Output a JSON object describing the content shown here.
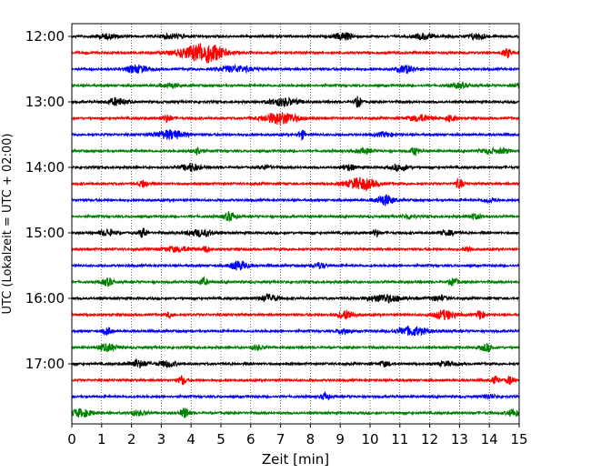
{
  "chart_data": {
    "type": "line",
    "title": "",
    "xlabel": "Zeit  [min]",
    "ylabel": "UTC (Lokalzeit = UTC + 02:00)",
    "xlim": [
      0,
      15
    ],
    "x_ticks": [
      "0",
      "1",
      "2",
      "3",
      "4",
      "5",
      "6",
      "7",
      "8",
      "9",
      "10",
      "11",
      "12",
      "13",
      "14",
      "15"
    ],
    "y_tick_labels": [
      "12:00",
      "13:00",
      "14:00",
      "15:00",
      "16:00",
      "17:00"
    ],
    "grid": "vertical dotted",
    "row_interval_min": 15,
    "colors": [
      "#000000",
      "#ff0000",
      "#0000ff",
      "#008000"
    ],
    "rows": [
      {
        "start": "12:00",
        "color": "#000000",
        "events": [
          [
            1.2,
            0.3,
            0.4
          ],
          [
            3.4,
            0.3,
            0.4
          ],
          [
            9.1,
            0.5,
            0.3
          ],
          [
            11.8,
            0.4,
            0.3
          ],
          [
            13.6,
            0.4,
            0.3
          ]
        ]
      },
      {
        "start": "12:15",
        "color": "#ff0000",
        "events": [
          [
            4.3,
            0.9,
            0.8
          ],
          [
            4.6,
            0.5,
            0.5
          ],
          [
            14.6,
            0.6,
            0.15
          ]
        ]
      },
      {
        "start": "12:30",
        "color": "#0000ff",
        "events": [
          [
            2.2,
            0.5,
            0.4
          ],
          [
            5.5,
            0.4,
            0.6
          ],
          [
            11.2,
            0.5,
            0.3
          ]
        ]
      },
      {
        "start": "12:45",
        "color": "#008000",
        "events": [
          [
            3.3,
            0.3,
            0.3
          ],
          [
            13.0,
            0.3,
            0.3
          ],
          [
            14.9,
            0.3,
            0.2
          ]
        ]
      },
      {
        "start": "13:00",
        "color": "#000000",
        "events": [
          [
            1.5,
            0.5,
            0.3
          ],
          [
            7.1,
            0.5,
            0.5
          ],
          [
            9.6,
            0.7,
            0.12
          ]
        ]
      },
      {
        "start": "13:15",
        "color": "#ff0000",
        "events": [
          [
            3.2,
            0.5,
            0.15
          ],
          [
            7.0,
            0.8,
            0.6
          ],
          [
            11.7,
            0.4,
            0.4
          ],
          [
            12.7,
            0.5,
            0.15
          ]
        ]
      },
      {
        "start": "13:30",
        "color": "#0000ff",
        "events": [
          [
            3.3,
            0.6,
            0.5
          ],
          [
            7.7,
            0.6,
            0.12
          ],
          [
            10.5,
            0.3,
            0.3
          ]
        ]
      },
      {
        "start": "13:45",
        "color": "#008000",
        "events": [
          [
            4.2,
            0.5,
            0.2
          ],
          [
            9.8,
            0.3,
            0.3
          ],
          [
            11.5,
            0.5,
            0.15
          ],
          [
            14.0,
            0.3,
            0.3
          ],
          [
            14.5,
            0.3,
            0.2
          ]
        ]
      },
      {
        "start": "14:00",
        "color": "#000000",
        "events": [
          [
            4.0,
            0.5,
            0.3
          ],
          [
            6.5,
            0.3,
            0.2
          ],
          [
            9.3,
            0.4,
            0.2
          ],
          [
            11.0,
            0.4,
            0.3
          ]
        ]
      },
      {
        "start": "14:15",
        "color": "#ff0000",
        "events": [
          [
            2.4,
            0.5,
            0.15
          ],
          [
            9.7,
            0.8,
            0.5
          ],
          [
            13.0,
            0.6,
            0.15
          ]
        ]
      },
      {
        "start": "14:30",
        "color": "#0000ff",
        "events": [
          [
            10.5,
            0.7,
            0.3
          ],
          [
            14.0,
            0.3,
            0.2
          ]
        ]
      },
      {
        "start": "14:45",
        "color": "#008000",
        "events": [
          [
            5.3,
            0.6,
            0.2
          ],
          [
            11.3,
            0.3,
            0.2
          ],
          [
            13.5,
            0.3,
            0.3
          ]
        ]
      },
      {
        "start": "15:00",
        "color": "#000000",
        "events": [
          [
            1.2,
            0.4,
            0.3
          ],
          [
            2.4,
            0.7,
            0.12
          ],
          [
            4.3,
            0.4,
            0.5
          ],
          [
            10.2,
            0.5,
            0.1
          ],
          [
            12.6,
            0.3,
            0.3
          ]
        ]
      },
      {
        "start": "15:15",
        "color": "#ff0000",
        "events": [
          [
            3.5,
            0.3,
            0.6
          ],
          [
            4.5,
            0.4,
            0.12
          ],
          [
            13.3,
            0.4,
            0.12
          ]
        ]
      },
      {
        "start": "15:30",
        "color": "#0000ff",
        "events": [
          [
            5.6,
            0.6,
            0.3
          ],
          [
            8.3,
            0.4,
            0.2
          ]
        ]
      },
      {
        "start": "15:45",
        "color": "#008000",
        "events": [
          [
            1.2,
            0.5,
            0.2
          ],
          [
            4.4,
            0.5,
            0.15
          ],
          [
            12.8,
            0.5,
            0.15
          ]
        ]
      },
      {
        "start": "16:00",
        "color": "#000000",
        "events": [
          [
            6.6,
            0.5,
            0.3
          ],
          [
            10.5,
            0.5,
            0.6
          ],
          [
            12.3,
            0.3,
            0.3
          ]
        ]
      },
      {
        "start": "16:15",
        "color": "#ff0000",
        "events": [
          [
            3.3,
            0.4,
            0.12
          ],
          [
            9.2,
            0.6,
            0.3
          ],
          [
            12.5,
            0.6,
            0.4
          ],
          [
            13.7,
            0.7,
            0.12
          ]
        ]
      },
      {
        "start": "16:30",
        "color": "#0000ff",
        "events": [
          [
            1.2,
            0.5,
            0.15
          ],
          [
            9.1,
            0.5,
            0.15
          ],
          [
            11.4,
            0.6,
            0.5
          ]
        ]
      },
      {
        "start": "16:45",
        "color": "#008000",
        "events": [
          [
            1.2,
            0.5,
            0.3
          ],
          [
            6.2,
            0.3,
            0.2
          ],
          [
            13.9,
            0.5,
            0.2
          ]
        ]
      },
      {
        "start": "17:00",
        "color": "#000000",
        "events": [
          [
            2.2,
            0.5,
            0.3
          ],
          [
            3.2,
            0.4,
            0.3
          ],
          [
            10.5,
            0.3,
            0.2
          ],
          [
            12.6,
            0.3,
            0.3
          ]
        ]
      },
      {
        "start": "17:15",
        "color": "#ff0000",
        "events": [
          [
            3.7,
            0.6,
            0.12
          ],
          [
            14.2,
            0.5,
            0.12
          ],
          [
            14.7,
            0.6,
            0.12
          ]
        ]
      },
      {
        "start": "17:30",
        "color": "#0000ff",
        "events": [
          [
            8.5,
            0.6,
            0.12
          ],
          [
            14.0,
            0.3,
            0.2
          ]
        ]
      },
      {
        "start": "17:45",
        "color": "#008000",
        "events": [
          [
            0.3,
            0.5,
            0.4
          ],
          [
            2.2,
            0.3,
            0.3
          ],
          [
            3.8,
            0.7,
            0.15
          ],
          [
            14.8,
            0.5,
            0.2
          ]
        ]
      }
    ]
  }
}
